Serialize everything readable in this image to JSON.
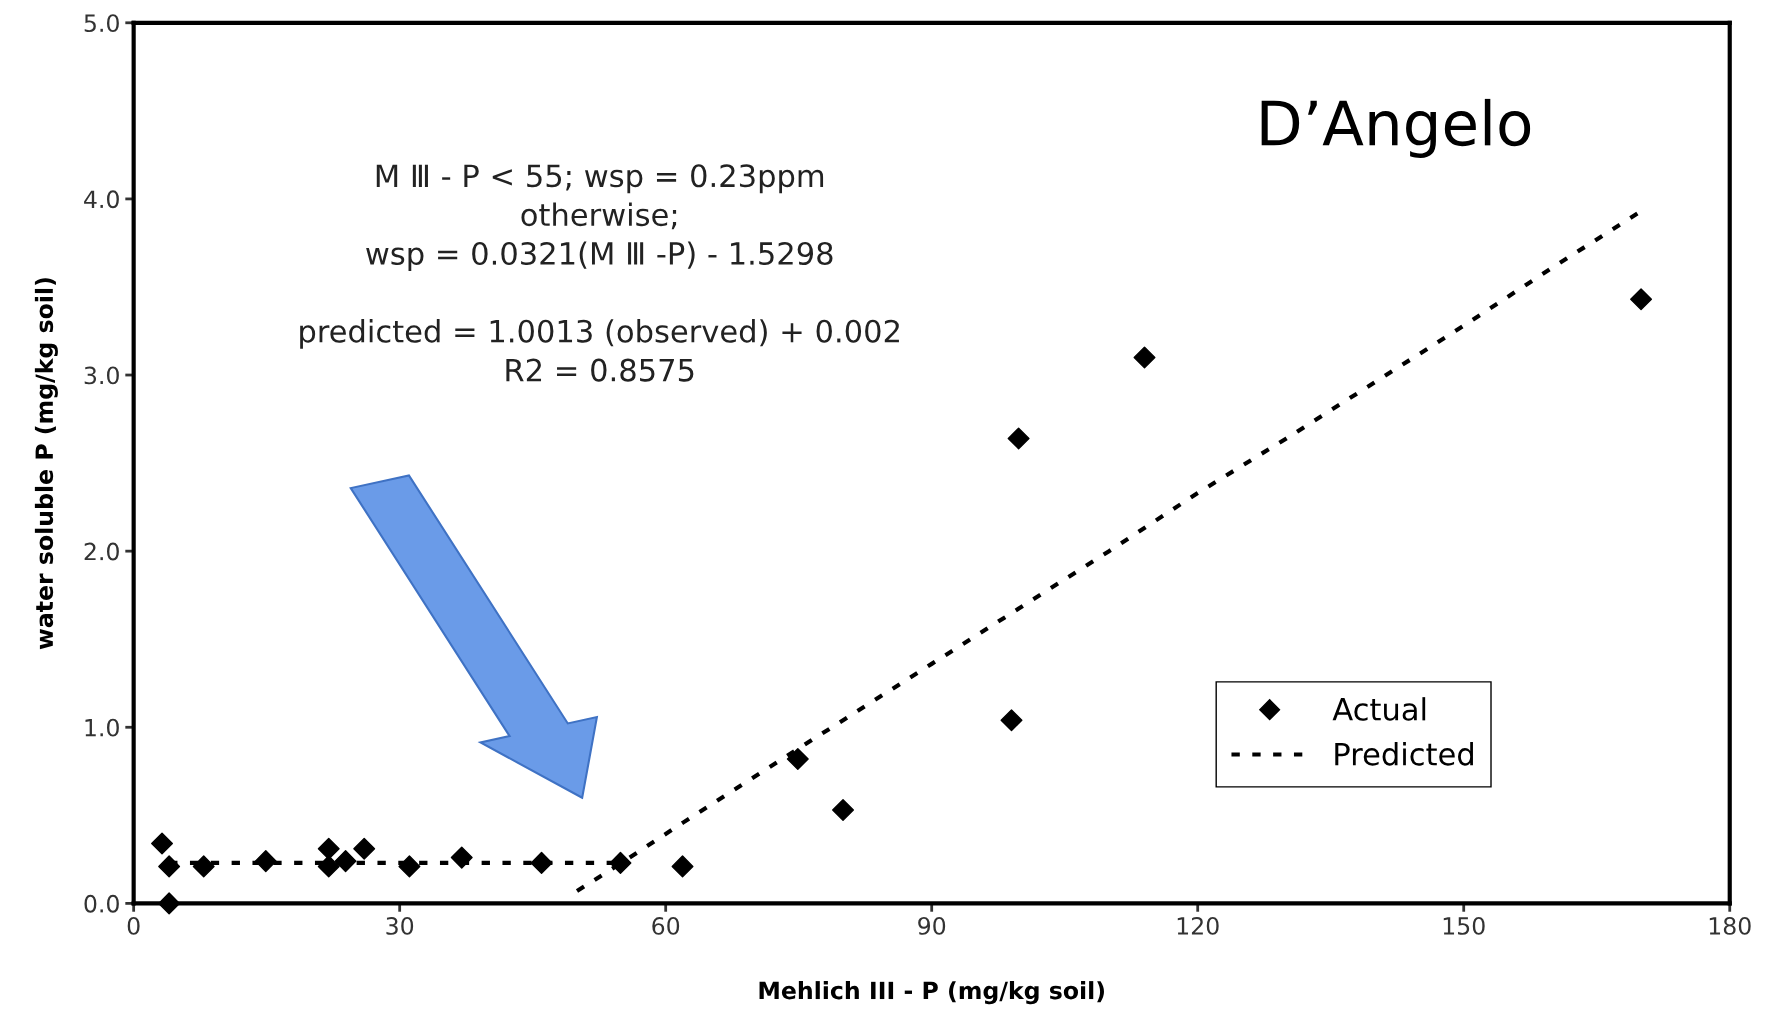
{
  "chart_data": {
    "type": "scatter",
    "xlabel": "Mehlich III - P (mg/kg soil)",
    "ylabel": "water soluble P (mg/kg soil)",
    "xlim": [
      0,
      180
    ],
    "xticks": [
      0,
      30,
      60,
      90,
      120,
      150,
      180
    ],
    "ylim": [
      0,
      5
    ],
    "yticks": [
      {
        "value": 0,
        "label": "0.0"
      },
      {
        "value": 1,
        "label": "1.0"
      },
      {
        "value": 2,
        "label": "2.0"
      },
      {
        "value": 3,
        "label": "3.0"
      },
      {
        "value": 4,
        "label": "4.0"
      },
      {
        "value": 5,
        "label": "5.0"
      }
    ],
    "grid": false,
    "legend": "bottom right",
    "series": [
      {
        "name": "Actual",
        "marker": "diamond",
        "color": "#000000",
        "x": [
          3.2,
          4,
          4,
          7.9,
          14.9,
          22,
          22,
          23.9,
          26,
          31.1,
          37,
          46,
          54.9,
          61.9,
          74.9,
          80,
          99,
          99.8,
          114,
          170
        ],
        "values": [
          0.34,
          0.21,
          0.0,
          0.21,
          0.24,
          0.31,
          0.21,
          0.24,
          0.31,
          0.21,
          0.26,
          0.23,
          0.23,
          0.21,
          0.82,
          0.53,
          1.04,
          2.64,
          3.1,
          3.43
        ]
      },
      {
        "name": "Predicted",
        "type": "line",
        "line_style": "dotted",
        "color": "#000000",
        "x": [
          4,
          55
        ],
        "values": [
          0.23,
          0.23
        ]
      },
      {
        "type": "line",
        "line_style": "dotted",
        "color": "#000000",
        "x": [
          50,
          55,
          62,
          75,
          90,
          100,
          110,
          120,
          130,
          140,
          150,
          160,
          170
        ],
        "values": [
          0.07,
          0.23,
          0.46,
          0.88,
          1.36,
          1.68,
          2.0,
          2.33,
          2.64,
          2.96,
          3.28,
          3.61,
          3.93
        ]
      }
    ],
    "annotations": [
      "M Ⅲ - P < 55; wsp = 0.23ppm\notherwise;\nwsp = 0.0321(M Ⅲ -P) - 1.5298\n\npredicted = 1.0013 (observed) + 0.002\nR2 = 0.8575",
      "D’Angelo"
    ]
  }
}
